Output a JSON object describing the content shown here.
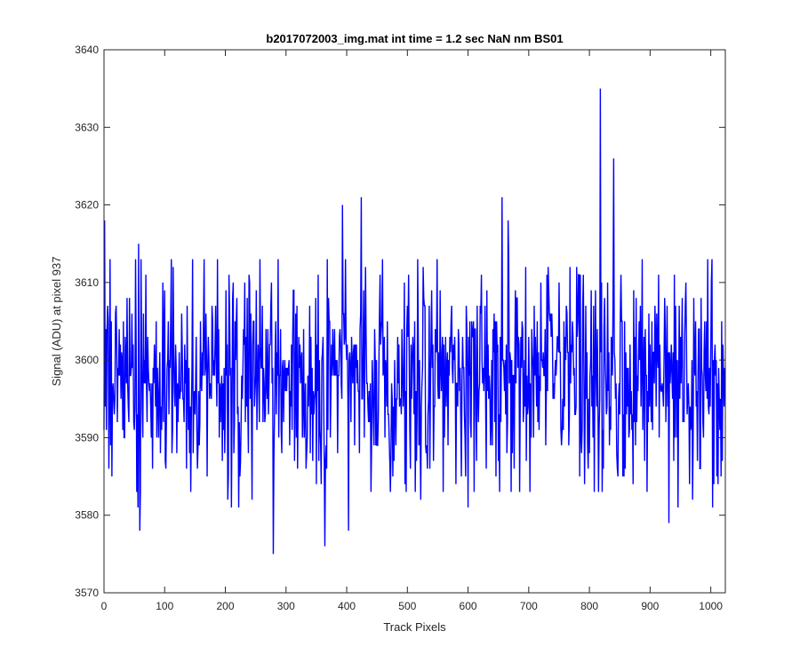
{
  "chart_data": {
    "type": "line",
    "title": "b2017072003_img.mat int time = 1.2 sec  NaN nm BS01",
    "xlabel": "Track Pixels",
    "ylabel": "Signal (ADU) at pixel 937",
    "xlim": [
      0,
      1024
    ],
    "ylim": [
      3570,
      3640
    ],
    "xticks": [
      0,
      100,
      200,
      300,
      400,
      500,
      600,
      700,
      800,
      900,
      1000
    ],
    "yticks": [
      3570,
      3580,
      3590,
      3600,
      3610,
      3620,
      3630,
      3640
    ],
    "grid": false,
    "series": [
      {
        "color": "#0000ff",
        "noise_range": [
          3583,
          3613
        ],
        "noise_center": 3598,
        "points": [
          {
            "x": 1,
            "y": 3618
          },
          {
            "x": 3,
            "y": 3604
          },
          {
            "x": 6,
            "y": 3607
          },
          {
            "x": 8,
            "y": 3586
          },
          {
            "x": 11,
            "y": 3589
          },
          {
            "x": 14,
            "y": 3596
          },
          {
            "x": 20,
            "y": 3607
          },
          {
            "x": 22,
            "y": 3592
          },
          {
            "x": 54,
            "y": 3583
          },
          {
            "x": 56,
            "y": 3581
          },
          {
            "x": 57,
            "y": 3615
          },
          {
            "x": 59,
            "y": 3578
          },
          {
            "x": 112,
            "y": 3588
          },
          {
            "x": 114,
            "y": 3612
          },
          {
            "x": 143,
            "y": 3583
          },
          {
            "x": 154,
            "y": 3586
          },
          {
            "x": 204,
            "y": 3582
          },
          {
            "x": 210,
            "y": 3581
          },
          {
            "x": 222,
            "y": 3581
          },
          {
            "x": 240,
            "y": 3610
          },
          {
            "x": 244,
            "y": 3582
          },
          {
            "x": 279,
            "y": 3575
          },
          {
            "x": 283,
            "y": 3605
          },
          {
            "x": 306,
            "y": 3589
          },
          {
            "x": 350,
            "y": 3584
          },
          {
            "x": 364,
            "y": 3576
          },
          {
            "x": 393,
            "y": 3620
          },
          {
            "x": 403,
            "y": 3578
          },
          {
            "x": 424,
            "y": 3621
          },
          {
            "x": 454,
            "y": 3606
          },
          {
            "x": 495,
            "y": 3610
          },
          {
            "x": 522,
            "y": 3582
          },
          {
            "x": 600,
            "y": 3581
          },
          {
            "x": 656,
            "y": 3621
          },
          {
            "x": 666,
            "y": 3618
          },
          {
            "x": 671,
            "y": 3583
          },
          {
            "x": 702,
            "y": 3583
          },
          {
            "x": 784,
            "y": 3585
          },
          {
            "x": 792,
            "y": 3584
          },
          {
            "x": 808,
            "y": 3583
          },
          {
            "x": 818,
            "y": 3635
          },
          {
            "x": 823,
            "y": 3586
          },
          {
            "x": 833,
            "y": 3589
          },
          {
            "x": 840,
            "y": 3626
          },
          {
            "x": 845,
            "y": 3588
          },
          {
            "x": 872,
            "y": 3584
          },
          {
            "x": 895,
            "y": 3583
          },
          {
            "x": 931,
            "y": 3579
          },
          {
            "x": 946,
            "y": 3581
          },
          {
            "x": 970,
            "y": 3582
          },
          {
            "x": 1003,
            "y": 3581
          },
          {
            "x": 1005,
            "y": 3584
          },
          {
            "x": 1010,
            "y": 3585
          },
          {
            "x": 1019,
            "y": 3587
          },
          {
            "x": 1023,
            "y": 3599
          }
        ]
      }
    ]
  }
}
